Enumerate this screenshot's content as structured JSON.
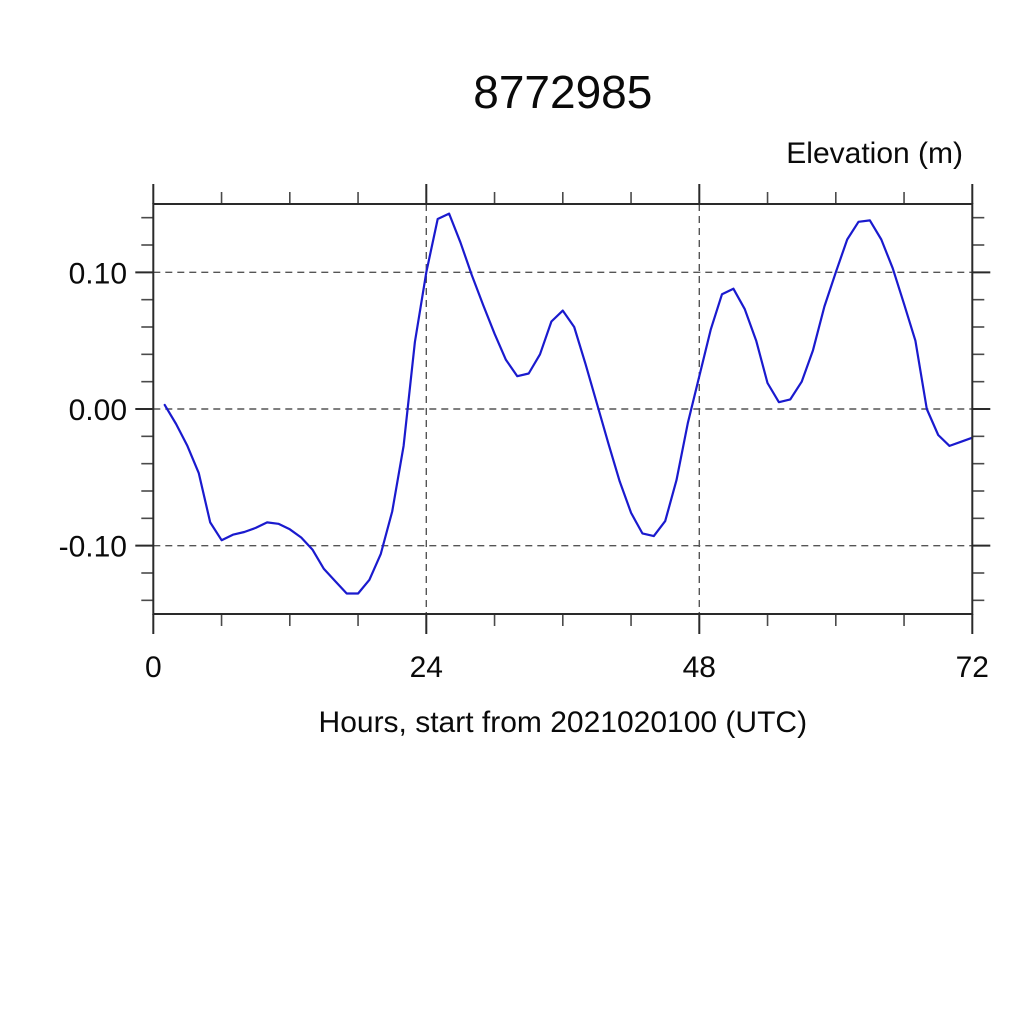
{
  "page": {
    "background": "#ffffff"
  },
  "chart_data": {
    "type": "line",
    "title": "8772985",
    "xlabel": "Hours, start from 2021020100 (UTC)",
    "ylabel": "Elevation (m)",
    "xlim": [
      0,
      72
    ],
    "ylim": [
      -0.15,
      0.15
    ],
    "grid": "dashed",
    "legend_position": "none",
    "x_tick_labels": [
      "0",
      "24",
      "48",
      "72"
    ],
    "x_major_ticks": [
      0,
      24,
      48,
      72
    ],
    "x_minor_ticks": [
      6,
      12,
      18,
      30,
      36,
      42,
      54,
      60,
      66
    ],
    "y_tick_labels": [
      "0.10",
      "0.00",
      "-0.10"
    ],
    "y_major_ticks": [
      0.1,
      0.0,
      -0.1
    ],
    "y_minor_ticks": [
      0.14,
      0.12,
      0.08,
      0.06,
      0.04,
      0.02,
      -0.02,
      -0.04,
      -0.06,
      -0.08,
      -0.12,
      -0.14
    ],
    "grid_x": [
      24,
      48
    ],
    "grid_y": [
      0.1,
      0.0,
      -0.1
    ],
    "line_color": "#1a1ace",
    "series": [
      {
        "name": "elevation",
        "x": [
          1,
          2,
          3,
          4,
          5,
          6,
          7,
          8,
          9,
          10,
          11,
          12,
          13,
          14,
          15,
          16,
          17,
          18,
          19,
          20,
          21,
          22,
          23,
          24,
          25,
          26,
          27,
          28,
          29,
          30,
          31,
          32,
          33,
          34,
          35,
          36,
          37,
          38,
          39,
          40,
          41,
          42,
          43,
          44,
          45,
          46,
          47,
          48,
          49,
          50,
          51,
          52,
          53,
          54,
          55,
          56,
          57,
          58,
          59,
          60,
          61,
          62,
          63,
          64,
          65,
          66,
          67,
          68,
          69,
          70,
          71,
          72
        ],
        "y": [
          0.003,
          -0.011,
          -0.027,
          -0.047,
          -0.083,
          -0.096,
          -0.092,
          -0.09,
          -0.087,
          -0.083,
          -0.084,
          -0.088,
          -0.094,
          -0.103,
          -0.117,
          -0.126,
          -0.135,
          -0.135,
          -0.125,
          -0.106,
          -0.075,
          -0.027,
          0.049,
          0.1,
          0.139,
          0.143,
          0.122,
          0.098,
          0.076,
          0.055,
          0.036,
          0.024,
          0.026,
          0.04,
          0.064,
          0.072,
          0.06,
          0.033,
          0.004,
          -0.025,
          -0.053,
          -0.076,
          -0.091,
          -0.093,
          -0.082,
          -0.052,
          -0.01,
          0.024,
          0.058,
          0.084,
          0.088,
          0.073,
          0.05,
          0.019,
          0.005,
          0.007,
          0.02,
          0.043,
          0.075,
          0.1,
          0.124,
          0.137,
          0.138,
          0.124,
          0.103,
          0.077,
          0.05,
          0.0,
          -0.019,
          -0.027,
          -0.024,
          -0.021
        ]
      }
    ]
  }
}
